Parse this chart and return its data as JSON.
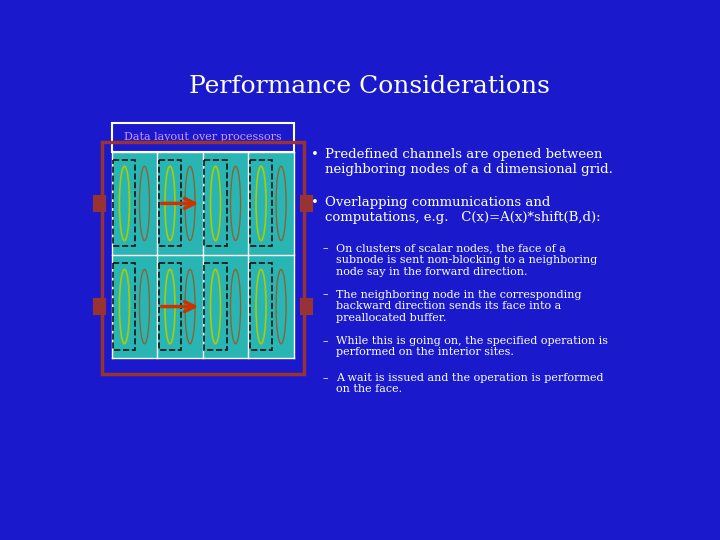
{
  "title": "Performance Considerations",
  "title_color": "#FFFFFF",
  "title_fontsize": 18,
  "bg_color": "#1a1acc",
  "label_text": "Data layout over processors",
  "label_color": "#cc99ff",
  "bullet1_main": "Predefined channels are opened between\nneighboring nodes of a d dimensional grid.",
  "bullet2_main": "Overlapping communications and\ncomputations, e.g.   C(x)=A(x)*shift(B,d):",
  "sub1": "On clusters of scalar nodes, the face of a\nsubnode is sent non-blocking to a neighboring\nnode say in the forward direction.",
  "sub2": "The neighboring node in the corresponding\nbackward direction sends its face into a\npreallocated buffer.",
  "sub3": "While this is going on, the specified operation is\nperformed on the interior sites.",
  "sub4": "A wait is issued and the operation is performed\non the face.",
  "text_color": "#FFFFFF",
  "teal_color": "#2ab5b5",
  "outer_white_box_color": "#FFFFFF",
  "outer_red_box_color": "#993333",
  "yellow_bright": "#aacc00",
  "yellow_dim": "#886633",
  "arrow_color": "#cc3300",
  "notch_color": "#993333",
  "dashed_color": "#111111",
  "grid_line_color": "#FFFFFF"
}
